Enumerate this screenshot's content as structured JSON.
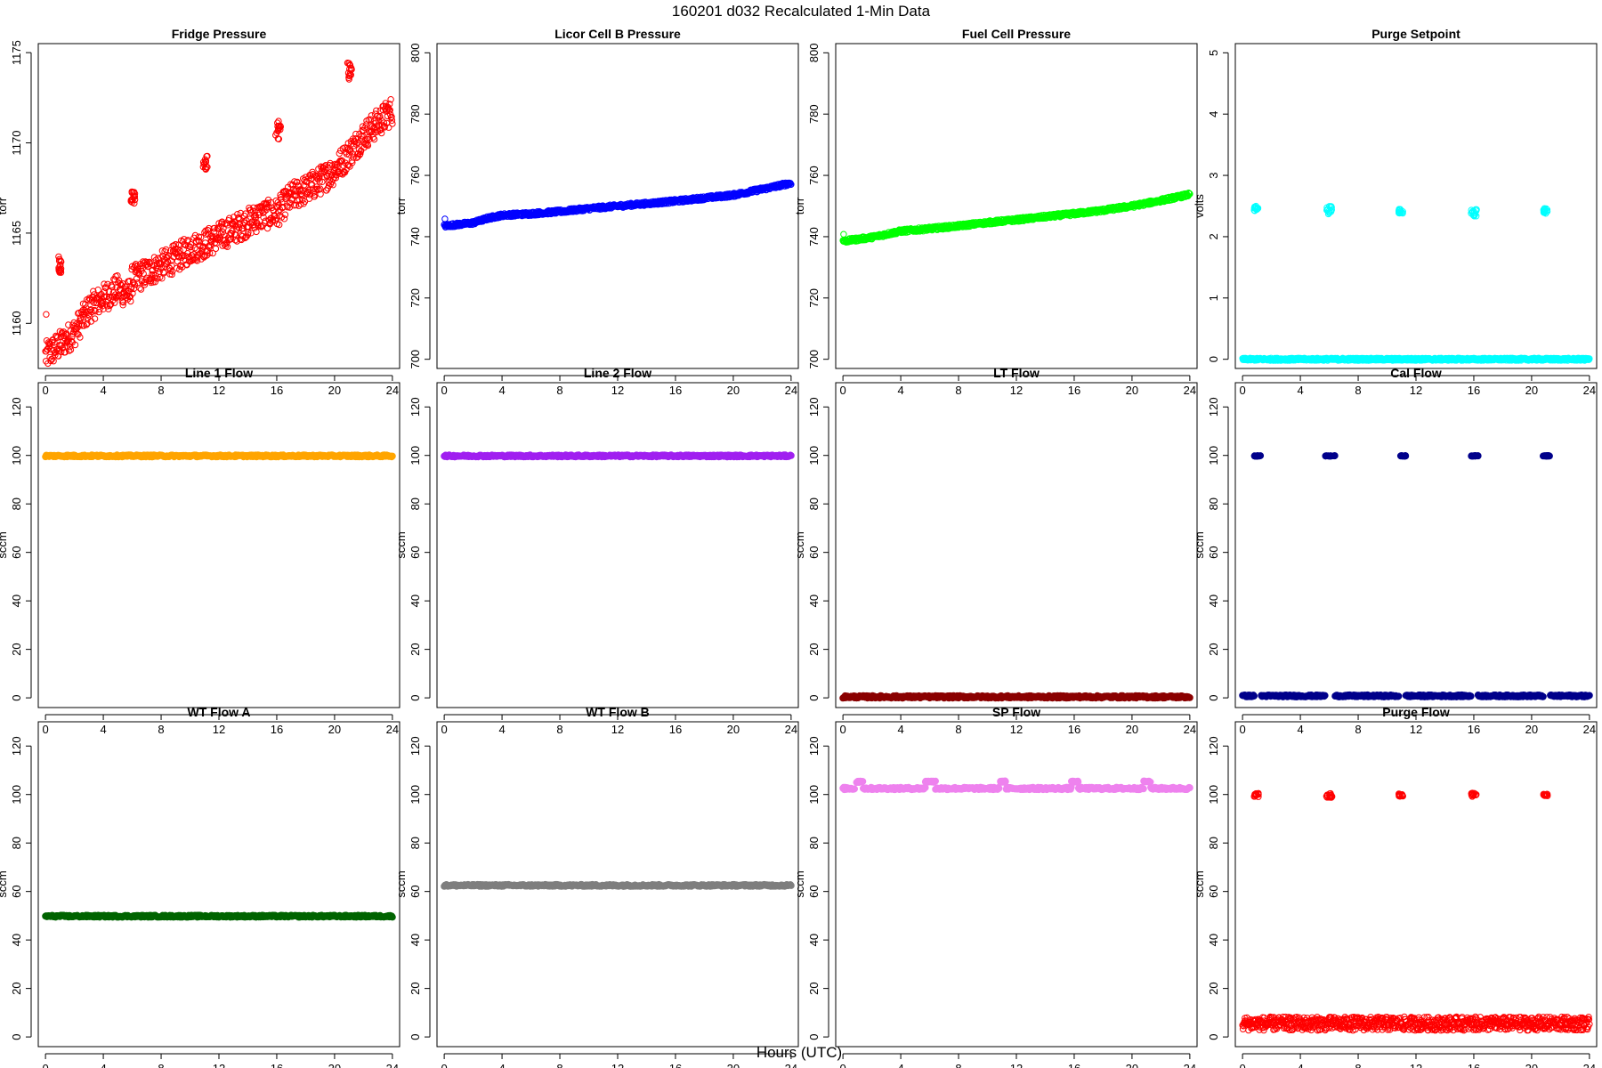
{
  "figure": {
    "title": "160201   d032   Recalculated 1-Min Data",
    "xlabel": "Hours (UTC)"
  },
  "chart_data": [
    {
      "type": "scatter",
      "title": "Fridge Pressure",
      "ylabel": "torr",
      "xlim": [
        -0.5,
        24.5
      ],
      "ylim": [
        1157.5,
        1175.5
      ],
      "xticks": [
        0,
        4,
        8,
        12,
        16,
        20,
        24
      ],
      "yticks": [
        1160,
        1165,
        1170,
        1175
      ],
      "color": "#ff0000",
      "marker": "open-circle",
      "series": [
        {
          "kind": "trend-band",
          "x": [
            0,
            1,
            2,
            3,
            4,
            5,
            5.8,
            6,
            7,
            8,
            9,
            10,
            11,
            12,
            13,
            14,
            15,
            16,
            17,
            18,
            19,
            20,
            21,
            22,
            23,
            24
          ],
          "y": [
            1158.2,
            1158.8,
            1159.5,
            1160.8,
            1161.4,
            1161.9,
            1161.6,
            1162.4,
            1162.8,
            1163.2,
            1163.6,
            1164.1,
            1164.4,
            1164.8,
            1165.2,
            1165.6,
            1166.0,
            1166.1,
            1167.0,
            1167.4,
            1167.9,
            1168.5,
            1169.4,
            1170.4,
            1171.1,
            1171.8
          ],
          "spread": 0.8
        },
        {
          "kind": "spike",
          "x": [
            0.9,
            1.1
          ],
          "y": [
            1162.8,
            1163.8
          ]
        },
        {
          "kind": "spike",
          "x": [
            5.9,
            6.2
          ],
          "y": [
            1166.2,
            1167.3
          ]
        },
        {
          "kind": "spike",
          "x": [
            10.9,
            11.2
          ],
          "y": [
            1168.5,
            1169.3
          ]
        },
        {
          "kind": "spike",
          "x": [
            15.9,
            16.3
          ],
          "y": [
            1170.2,
            1171.3
          ]
        },
        {
          "kind": "spike",
          "x": [
            20.9,
            21.2
          ],
          "y": [
            1173.5,
            1174.5
          ]
        },
        {
          "kind": "points",
          "x": [
            0.05
          ],
          "y": [
            1160.5
          ]
        }
      ]
    },
    {
      "type": "scatter",
      "title": "Licor Cell B Pressure",
      "ylabel": "torr",
      "xlim": [
        -0.5,
        24.5
      ],
      "ylim": [
        697,
        803
      ],
      "xticks": [
        0,
        4,
        8,
        12,
        16,
        20,
        24
      ],
      "yticks": [
        700,
        720,
        740,
        760,
        780,
        800
      ],
      "color": "#0000ff",
      "marker": "open-circle",
      "series": [
        {
          "kind": "trend-band",
          "x": [
            0,
            2,
            3,
            4,
            6,
            8,
            10,
            12,
            14,
            16,
            18,
            20,
            22,
            24
          ],
          "y": [
            743.5,
            744.5,
            746.0,
            747.0,
            747.5,
            748.2,
            749.2,
            750.0,
            750.8,
            751.6,
            752.6,
            753.6,
            755.5,
            757.5
          ],
          "spread": 0.6
        },
        {
          "kind": "points",
          "x": [
            0.05
          ],
          "y": [
            745.8
          ]
        }
      ]
    },
    {
      "type": "scatter",
      "title": "Fuel Cell Pressure",
      "ylabel": "torr",
      "xlim": [
        -0.5,
        24.5
      ],
      "ylim": [
        697,
        803
      ],
      "xticks": [
        0,
        4,
        8,
        12,
        16,
        20,
        24
      ],
      "yticks": [
        700,
        720,
        740,
        760,
        780,
        800
      ],
      "color": "#00ff00",
      "marker": "open-circle",
      "series": [
        {
          "kind": "trend-band",
          "x": [
            0,
            2,
            4,
            6,
            8,
            10,
            12,
            14,
            16,
            18,
            20,
            22,
            24
          ],
          "y": [
            738.5,
            739.8,
            741.8,
            742.6,
            743.5,
            744.6,
            745.5,
            746.5,
            747.5,
            748.6,
            750.0,
            751.8,
            753.8
          ],
          "spread": 0.6
        },
        {
          "kind": "points",
          "x": [
            0.05
          ],
          "y": [
            740.8
          ]
        }
      ]
    },
    {
      "type": "scatter",
      "title": "Purge Setpoint",
      "ylabel": "volts",
      "xlim": [
        -0.5,
        24.5
      ],
      "ylim": [
        -0.15,
        5.15
      ],
      "xticks": [
        0,
        4,
        8,
        12,
        16,
        20,
        24
      ],
      "yticks": [
        0,
        1,
        2,
        3,
        4,
        5
      ],
      "color": "#00ffff",
      "marker": "open-circle",
      "series": [
        {
          "kind": "trend-band",
          "x": [
            0,
            24
          ],
          "y": [
            0,
            0
          ],
          "spread": 0.02
        },
        {
          "kind": "spike",
          "x": [
            0.8,
            1.1
          ],
          "y": [
            2.4,
            2.5
          ]
        },
        {
          "kind": "spike",
          "x": [
            5.8,
            6.2
          ],
          "y": [
            2.35,
            2.5
          ]
        },
        {
          "kind": "spike",
          "x": [
            10.8,
            11.1
          ],
          "y": [
            2.38,
            2.45
          ]
        },
        {
          "kind": "spike",
          "x": [
            15.8,
            16.2
          ],
          "y": [
            2.33,
            2.45
          ]
        },
        {
          "kind": "spike",
          "x": [
            20.8,
            21.1
          ],
          "y": [
            2.38,
            2.47
          ]
        }
      ]
    },
    {
      "type": "scatter",
      "title": "Line 1 Flow",
      "ylabel": "sccm",
      "xlim": [
        -0.5,
        24.5
      ],
      "ylim": [
        -4,
        130
      ],
      "xticks": [
        0,
        4,
        8,
        12,
        16,
        20,
        24
      ],
      "yticks": [
        0,
        20,
        40,
        60,
        80,
        100,
        120
      ],
      "color": "#ffa500",
      "marker": "filled-band",
      "series": [
        {
          "kind": "trend-band",
          "x": [
            0,
            24
          ],
          "y": [
            99.8,
            99.8
          ],
          "spread": 0.4
        }
      ]
    },
    {
      "type": "scatter",
      "title": "Line 2 Flow",
      "ylabel": "sccm",
      "xlim": [
        -0.5,
        24.5
      ],
      "ylim": [
        -4,
        130
      ],
      "xticks": [
        0,
        4,
        8,
        12,
        16,
        20,
        24
      ],
      "yticks": [
        0,
        20,
        40,
        60,
        80,
        100,
        120
      ],
      "color": "#a020f0",
      "marker": "filled-band",
      "series": [
        {
          "kind": "trend-band",
          "x": [
            0,
            24
          ],
          "y": [
            99.8,
            99.8
          ],
          "spread": 0.4
        }
      ]
    },
    {
      "type": "scatter",
      "title": "LT Flow",
      "ylabel": "sccm",
      "xlim": [
        -0.5,
        24.5
      ],
      "ylim": [
        -4,
        130
      ],
      "xticks": [
        0,
        4,
        8,
        12,
        16,
        20,
        24
      ],
      "yticks": [
        0,
        20,
        40,
        60,
        80,
        100,
        120
      ],
      "color": "#8b0000",
      "marker": "filled-band",
      "series": [
        {
          "kind": "trend-band",
          "x": [
            0,
            24
          ],
          "y": [
            0.4,
            0.4
          ],
          "spread": 0.5
        }
      ]
    },
    {
      "type": "scatter",
      "title": "Cal Flow",
      "ylabel": "sccm",
      "xlim": [
        -0.5,
        24.5
      ],
      "ylim": [
        -4,
        130
      ],
      "xticks": [
        0,
        4,
        8,
        12,
        16,
        20,
        24
      ],
      "yticks": [
        0,
        20,
        40,
        60,
        80,
        100,
        120
      ],
      "color": "#00008b",
      "marker": "filled-band",
      "series": [
        {
          "kind": "segments",
          "x": [
            0,
            0.8,
            1.3,
            5.7,
            6.4,
            10.8,
            11.3,
            15.8,
            16.3,
            20.8,
            21.3,
            24
          ],
          "y": [
            0.8,
            0.8,
            0.8,
            0.8,
            0.8,
            0.8,
            0.8,
            0.8,
            0.8,
            0.8,
            0.8,
            0.8
          ],
          "spread": 0.4
        },
        {
          "kind": "spike",
          "x": [
            0.8,
            1.3
          ],
          "y": [
            99.7,
            99.9
          ]
        },
        {
          "kind": "spike",
          "x": [
            5.7,
            6.4
          ],
          "y": [
            99.7,
            99.9
          ]
        },
        {
          "kind": "spike",
          "x": [
            10.8,
            11.3
          ],
          "y": [
            99.7,
            99.9
          ]
        },
        {
          "kind": "spike",
          "x": [
            15.8,
            16.3
          ],
          "y": [
            99.7,
            99.9
          ]
        },
        {
          "kind": "spike",
          "x": [
            20.8,
            21.3
          ],
          "y": [
            99.7,
            99.9
          ]
        }
      ]
    },
    {
      "type": "scatter",
      "title": "WT Flow A",
      "ylabel": "sccm",
      "xlim": [
        -0.5,
        24.5
      ],
      "ylim": [
        -4,
        130
      ],
      "xticks": [
        0,
        4,
        8,
        12,
        16,
        20,
        24
      ],
      "yticks": [
        0,
        20,
        40,
        60,
        80,
        100,
        120
      ],
      "color": "#006400",
      "marker": "filled-band",
      "series": [
        {
          "kind": "trend-band",
          "x": [
            0,
            24
          ],
          "y": [
            49.8,
            49.8
          ],
          "spread": 0.4
        }
      ]
    },
    {
      "type": "scatter",
      "title": "WT Flow B",
      "ylabel": "sccm",
      "xlim": [
        -0.5,
        24.5
      ],
      "ylim": [
        -4,
        130
      ],
      "xticks": [
        0,
        4,
        8,
        12,
        16,
        20,
        24
      ],
      "yticks": [
        0,
        20,
        40,
        60,
        80,
        100,
        120
      ],
      "color": "#7f7f7f",
      "marker": "filled-band",
      "series": [
        {
          "kind": "trend-band",
          "x": [
            0,
            24
          ],
          "y": [
            62.5,
            62.5
          ],
          "spread": 0.4
        }
      ]
    },
    {
      "type": "scatter",
      "title": "SP Flow",
      "ylabel": "sccm",
      "xlim": [
        -0.5,
        24.5
      ],
      "ylim": [
        -4,
        130
      ],
      "xticks": [
        0,
        4,
        8,
        12,
        16,
        20,
        24
      ],
      "yticks": [
        0,
        20,
        40,
        60,
        80,
        100,
        120
      ],
      "color": "#ee82ee",
      "marker": "filled-band",
      "series": [
        {
          "kind": "segments",
          "x": [
            0,
            0.8,
            1.4,
            5.7,
            6.4,
            10.8,
            11.3,
            15.8,
            16.3,
            20.8,
            21.3,
            24
          ],
          "y": [
            102.5,
            102.5,
            102.5,
            102.5,
            102.5,
            102.5,
            102.5,
            102.5,
            102.5,
            102.5,
            102.5,
            102.5
          ],
          "spread": 0.5
        },
        {
          "kind": "spike",
          "x": [
            0.8,
            1.4
          ],
          "y": [
            105,
            105.6
          ]
        },
        {
          "kind": "spike",
          "x": [
            5.7,
            6.4
          ],
          "y": [
            105,
            105.6
          ]
        },
        {
          "kind": "spike",
          "x": [
            10.8,
            11.3
          ],
          "y": [
            105,
            105.6
          ]
        },
        {
          "kind": "spike",
          "x": [
            15.8,
            16.3
          ],
          "y": [
            105,
            105.6
          ]
        },
        {
          "kind": "spike",
          "x": [
            20.8,
            21.3
          ],
          "y": [
            105,
            105.6
          ]
        }
      ]
    },
    {
      "type": "scatter",
      "title": "Purge Flow",
      "ylabel": "sccm",
      "xlim": [
        -0.5,
        24.5
      ],
      "ylim": [
        -4,
        130
      ],
      "xticks": [
        0,
        4,
        8,
        12,
        16,
        20,
        24
      ],
      "yticks": [
        0,
        20,
        40,
        60,
        80,
        100,
        120
      ],
      "color": "#ff0000",
      "marker": "open-circle",
      "series": [
        {
          "kind": "trend-band",
          "x": [
            0,
            24
          ],
          "y": [
            5.5,
            5.5
          ],
          "spread": 2.8
        },
        {
          "kind": "spike",
          "x": [
            0.8,
            1.1
          ],
          "y": [
            99,
            100.5
          ]
        },
        {
          "kind": "spike",
          "x": [
            5.8,
            6.2
          ],
          "y": [
            98.8,
            100.5
          ]
        },
        {
          "kind": "spike",
          "x": [
            10.8,
            11.1
          ],
          "y": [
            99.2,
            100.3
          ]
        },
        {
          "kind": "spike",
          "x": [
            15.8,
            16.2
          ],
          "y": [
            99.2,
            100.6
          ]
        },
        {
          "kind": "spike",
          "x": [
            20.8,
            21.1
          ],
          "y": [
            99.4,
            100.3
          ]
        }
      ]
    }
  ]
}
